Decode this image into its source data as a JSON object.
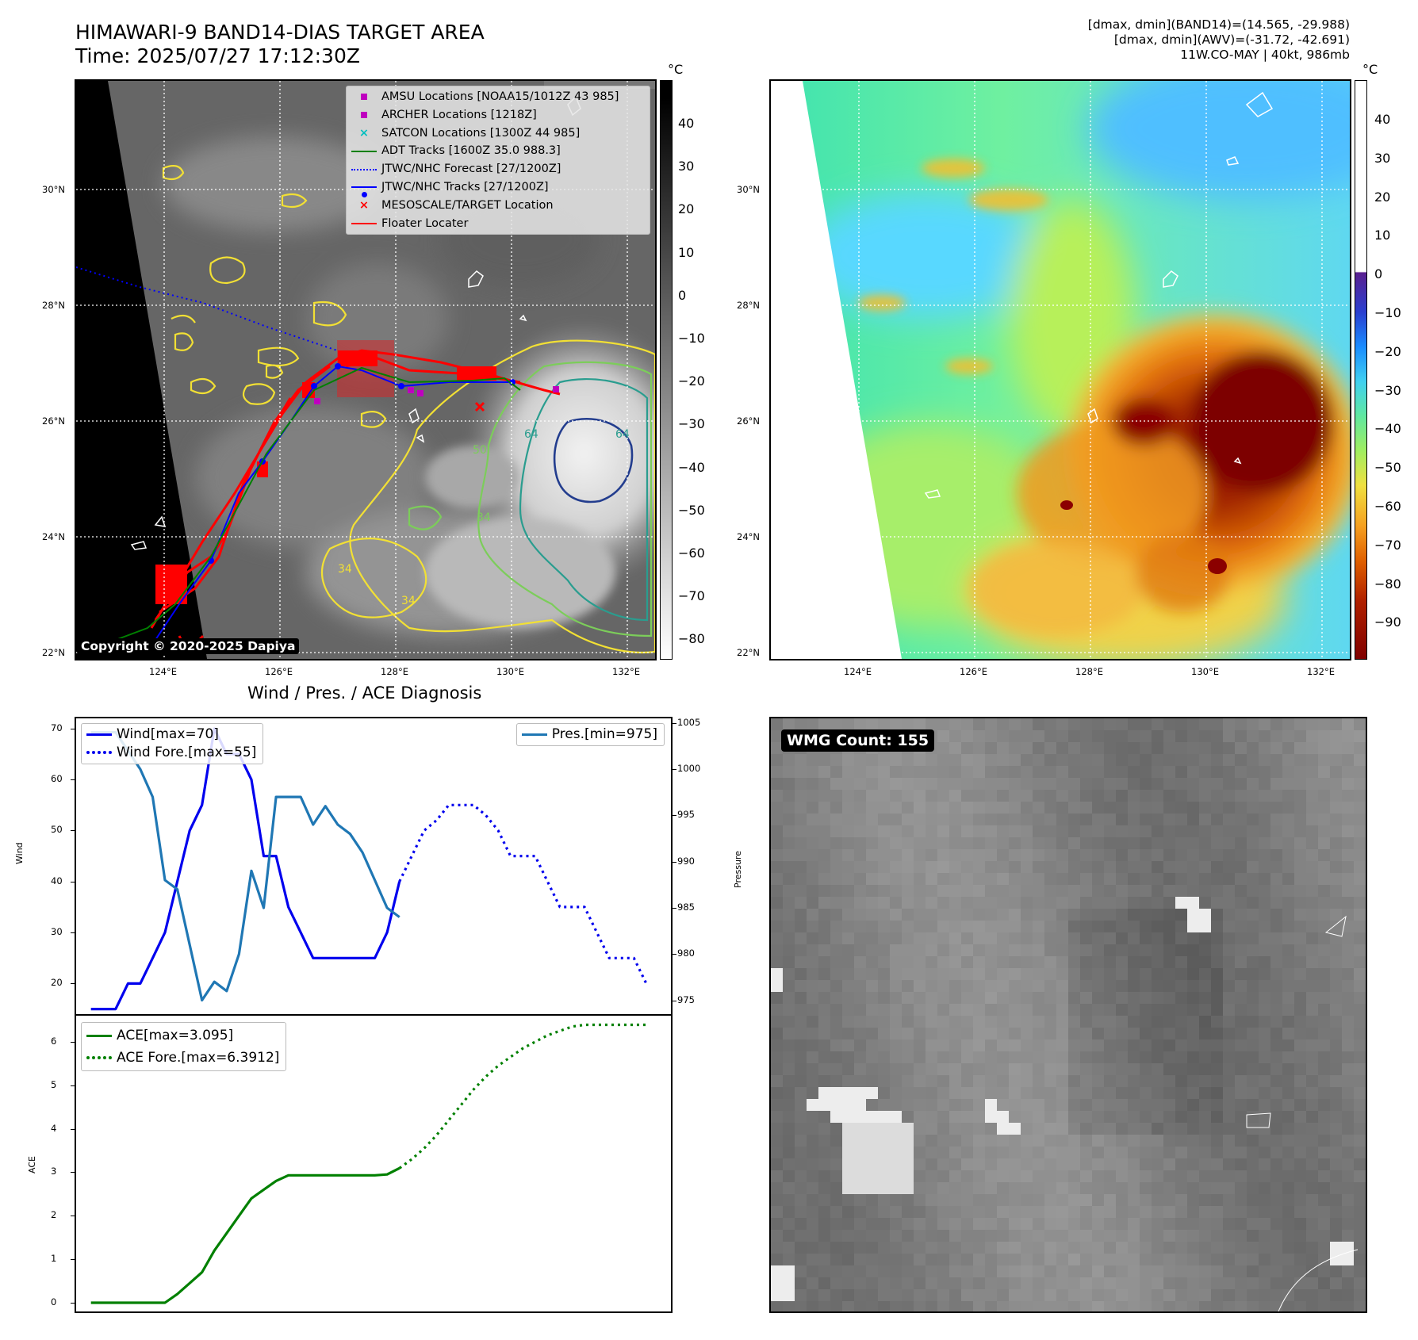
{
  "header": {
    "title_line1": "HIMAWARI-9 BAND14-DIAS TARGET AREA",
    "title_line2": "Time: 2025/07/27 17:12:30Z",
    "right_line1": "[dmax, dmin](BAND14)=(14.565, -29.988)",
    "right_line2": "[dmax, dmin](AWV)=(-31.72, -42.691)",
    "right_line3": "11W.CO-MAY | 40kt, 986mb"
  },
  "maps": {
    "lat_ticks": [
      "30°N",
      "28°N",
      "26°N",
      "24°N",
      "22°N"
    ],
    "lon_ticks": [
      "124°E",
      "126°E",
      "128°E",
      "130°E",
      "132°E"
    ],
    "cbar_unit": "°C",
    "cbar_left_ticks": [
      "40",
      "30",
      "20",
      "10",
      "0",
      "−10",
      "−20",
      "−30",
      "−40",
      "−50",
      "−60",
      "−70",
      "−80"
    ],
    "cbar_right_ticks": [
      "40",
      "30",
      "20",
      "10",
      "0",
      "−10",
      "−20",
      "−30",
      "−40",
      "−50",
      "−60",
      "−70",
      "−80",
      "−90"
    ],
    "copyright": "Copyright © 2020-2025 Dapiya",
    "legend": [
      {
        "label": "AMSU Locations [NOAA15/1012Z 43 985]",
        "symbol": "square",
        "color": "#bf00bf"
      },
      {
        "label": "ARCHER Locations [1218Z]",
        "symbol": "square",
        "color": "#bf00bf"
      },
      {
        "label": "SATCON Locations [1300Z 44 985]",
        "symbol": "x",
        "color": "#00bfbf"
      },
      {
        "label": "ADT Tracks [1600Z 35.0 988.3]",
        "symbol": "line",
        "color": "#008000"
      },
      {
        "label": "JTWC/NHC Forecast [27/1200Z]",
        "symbol": "dotted",
        "color": "#0000ff"
      },
      {
        "label": "JTWC/NHC Tracks [27/1200Z]",
        "symbol": "line-dot",
        "color": "#0000ff"
      },
      {
        "label": "MESOSCALE/TARGET Location",
        "symbol": "x",
        "color": "#ff0000"
      },
      {
        "label": "Floater Locater",
        "symbol": "line",
        "color": "#ff0000"
      }
    ],
    "contour_labels": [
      "64",
      "50",
      "34",
      "64",
      "34",
      "34",
      "64",
      "50",
      "34",
      "34"
    ]
  },
  "diagnosis": {
    "title": "Wind / Pres. / ACE Diagnosis",
    "wmg_label": "WMG Count: 155"
  },
  "chart_data": [
    {
      "type": "line",
      "ylabel": "Wind",
      "ylabel_right": "Pressure",
      "ylim": [
        14,
        72
      ],
      "ylim_right": [
        973.5,
        1005.5
      ],
      "yticks": [
        20,
        30,
        40,
        50,
        60,
        70
      ],
      "yticks_right": [
        975,
        980,
        985,
        990,
        995,
        1000,
        1005
      ],
      "legend_left": [
        "Wind[max=70]",
        "Wind Fore.[max=55]"
      ],
      "legend_right": [
        "Pres.[min=975]"
      ],
      "series": [
        {
          "name": "Wind[max=70]",
          "color": "#0000ee",
          "style": "solid",
          "x": [
            0,
            1,
            2,
            3,
            4,
            5,
            6,
            7,
            8,
            9,
            10,
            11,
            12,
            13,
            14,
            15,
            16,
            17,
            18,
            19,
            20,
            21,
            22,
            23,
            24,
            25
          ],
          "values": [
            15,
            15,
            15,
            20,
            20,
            25,
            30,
            40,
            50,
            55,
            70,
            65,
            65,
            60,
            45,
            45,
            35,
            30,
            25,
            25,
            25,
            25,
            25,
            25,
            30,
            40
          ]
        },
        {
          "name": "Wind Fore.[max=55]",
          "color": "#0000ee",
          "style": "dotted",
          "x": [
            25,
            26,
            27,
            28,
            29,
            30,
            31,
            32,
            33,
            34,
            35,
            36,
            37,
            38,
            39,
            40,
            41,
            42,
            43,
            44,
            45
          ],
          "values": [
            40,
            45,
            50,
            52,
            55,
            55,
            55,
            53,
            50,
            45,
            45,
            45,
            40,
            35,
            35,
            35,
            30,
            25,
            25,
            25,
            20
          ]
        },
        {
          "name": "Pres.[min=975]",
          "color": "#1f77b4",
          "style": "solid",
          "axis": "right",
          "x": [
            0,
            1,
            2,
            3,
            4,
            5,
            6,
            7,
            8,
            9,
            10,
            11,
            12,
            13,
            14,
            15,
            16,
            17,
            18,
            19,
            20,
            21,
            22,
            23,
            24,
            25
          ],
          "values": [
            1004,
            1004,
            1004,
            1002,
            1000,
            997,
            988,
            987,
            981,
            975,
            977,
            976,
            980,
            989,
            985,
            997,
            997,
            997,
            994,
            996,
            994,
            993,
            991,
            988,
            985,
            984
          ]
        }
      ]
    },
    {
      "type": "line",
      "ylabel": "ACE",
      "ylim": [
        -0.2,
        6.6
      ],
      "yticks": [
        0,
        1,
        2,
        3,
        4,
        5,
        6
      ],
      "legend": [
        "ACE[max=3.095]",
        "ACE Fore.[max=6.3912]"
      ],
      "series": [
        {
          "name": "ACE[max=3.095]",
          "color": "#008000",
          "style": "solid",
          "x": [
            0,
            1,
            2,
            3,
            4,
            5,
            6,
            7,
            8,
            9,
            10,
            11,
            12,
            13,
            14,
            15,
            16,
            17,
            18,
            19,
            20,
            21,
            22,
            23,
            24,
            25
          ],
          "values": [
            0,
            0,
            0,
            0,
            0,
            0,
            0,
            0.2,
            0.45,
            0.7,
            1.2,
            1.6,
            2.0,
            2.4,
            2.6,
            2.8,
            2.93,
            2.93,
            2.93,
            2.93,
            2.93,
            2.93,
            2.93,
            2.93,
            2.95,
            3.095
          ]
        },
        {
          "name": "ACE Fore.[max=6.3912]",
          "color": "#008000",
          "style": "dotted",
          "x": [
            25,
            26,
            27,
            28,
            29,
            30,
            31,
            32,
            33,
            34,
            35,
            36,
            37,
            38,
            39,
            40,
            41,
            42,
            43,
            44,
            45
          ],
          "values": [
            3.095,
            3.3,
            3.55,
            3.85,
            4.2,
            4.55,
            4.9,
            5.2,
            5.45,
            5.65,
            5.85,
            6.0,
            6.15,
            6.25,
            6.35,
            6.39,
            6.39,
            6.39,
            6.39,
            6.39,
            6.39
          ]
        }
      ]
    }
  ]
}
